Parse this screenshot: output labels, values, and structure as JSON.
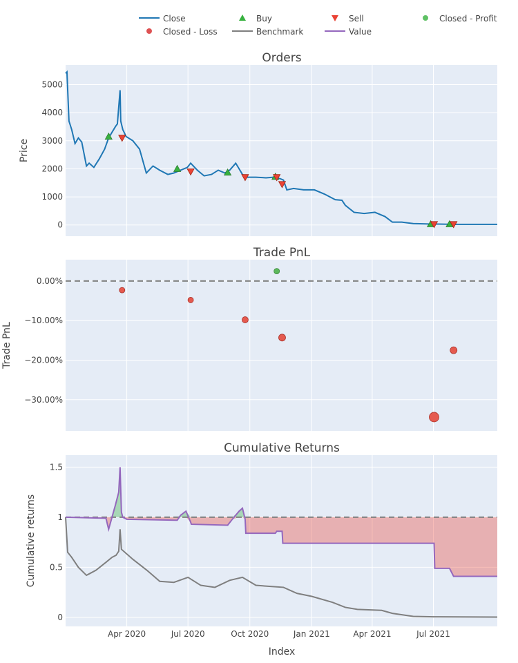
{
  "legend": {
    "items": [
      {
        "key": "close",
        "label": "Close",
        "symbol": "line",
        "color": "#1f77b4"
      },
      {
        "key": "buy",
        "label": "Buy",
        "symbol": "triangle-up",
        "color": "#37b13f"
      },
      {
        "key": "sell",
        "label": "Sell",
        "symbol": "triangle-down",
        "color": "#ea4335"
      },
      {
        "key": "closed_profit",
        "label": "Closed - Profit",
        "symbol": "circle",
        "color": "#37b13f"
      },
      {
        "key": "closed_loss",
        "label": "Closed - Loss",
        "symbol": "circle",
        "color": "#d62728"
      },
      {
        "key": "benchmark",
        "label": "Benchmark",
        "symbol": "line",
        "color": "#7f7f7f"
      },
      {
        "key": "value",
        "label": "Value",
        "symbol": "line",
        "color": "#9467bd"
      }
    ]
  },
  "x_axis": {
    "label": "Index",
    "range": [
      "2020-01-01",
      "2021-10-04"
    ],
    "ticks": [
      {
        "date": "2020-04-01",
        "label": "Apr 2020"
      },
      {
        "date": "2020-07-01",
        "label": "Jul 2020"
      },
      {
        "date": "2020-10-01",
        "label": "Oct 2020"
      },
      {
        "date": "2021-01-01",
        "label": "Jan 2021"
      },
      {
        "date": "2021-04-01",
        "label": "Apr 2021"
      },
      {
        "date": "2021-07-01",
        "label": "Jul 2021"
      }
    ]
  },
  "colors": {
    "plot_bg": "#e5ecf6",
    "grid": "#ffffff",
    "close": "#1f77b4",
    "benchmark": "#7f7f7f",
    "value": "#9467bd",
    "profit": "#37b13f",
    "loss": "#ea4335",
    "loss_fill": "rgba(234,67,53,0.35)",
    "profit_fill": "rgba(55,177,63,0.35)",
    "ref_line": "#808080"
  },
  "chart_data": [
    {
      "type": "line",
      "title": "Orders",
      "xlabel": "",
      "ylabel": "Price",
      "ylim": [
        -400,
        5700
      ],
      "yticks": [
        0,
        1000,
        2000,
        3000,
        4000,
        5000
      ],
      "series": [
        {
          "name": "Close",
          "x": [
            "2020-01-01",
            "2020-01-03",
            "2020-01-06",
            "2020-01-10",
            "2020-01-15",
            "2020-01-20",
            "2020-01-25",
            "2020-02-01",
            "2020-02-05",
            "2020-02-12",
            "2020-02-20",
            "2020-02-28",
            "2020-03-05",
            "2020-03-10",
            "2020-03-15",
            "2020-03-18",
            "2020-03-22",
            "2020-03-23",
            "2020-03-24",
            "2020-03-26",
            "2020-03-31",
            "2020-04-10",
            "2020-04-20",
            "2020-04-30",
            "2020-05-10",
            "2020-05-20",
            "2020-06-01",
            "2020-06-10",
            "2020-06-20",
            "2020-06-30",
            "2020-07-05",
            "2020-07-15",
            "2020-07-25",
            "2020-08-05",
            "2020-08-15",
            "2020-08-25",
            "2020-09-01",
            "2020-09-10",
            "2020-09-20",
            "2020-09-25",
            "2020-10-10",
            "2020-10-25",
            "2020-11-05",
            "2020-11-15",
            "2020-11-20",
            "2020-11-25",
            "2020-12-05",
            "2020-12-20",
            "2021-01-05",
            "2021-01-20",
            "2021-02-05",
            "2021-02-15",
            "2021-02-20",
            "2021-03-05",
            "2021-03-20",
            "2021-04-05",
            "2021-04-20",
            "2021-05-01",
            "2021-05-15",
            "2021-06-01",
            "2021-06-30",
            "2021-07-10",
            "2021-08-01",
            "2021-09-01",
            "2021-10-04"
          ],
          "y": [
            5400,
            5450,
            3700,
            3400,
            2900,
            3100,
            2950,
            2100,
            2200,
            2050,
            2350,
            2700,
            3100,
            3300,
            3500,
            3600,
            4800,
            3700,
            3600,
            3400,
            3150,
            3000,
            2700,
            1850,
            2100,
            1950,
            1800,
            1850,
            1950,
            2050,
            2200,
            1950,
            1750,
            1800,
            1950,
            1850,
            1950,
            2200,
            1800,
            1700,
            1700,
            1680,
            1700,
            1650,
            1600,
            1250,
            1300,
            1250,
            1250,
            1100,
            900,
            880,
            700,
            450,
            410,
            450,
            300,
            100,
            100,
            50,
            30,
            30,
            20,
            20,
            20
          ]
        }
      ],
      "markers": {
        "buy": {
          "name": "Buy",
          "x": [
            "2020-03-05",
            "2020-06-15",
            "2020-08-29",
            "2020-11-08",
            "2021-06-27",
            "2021-07-25"
          ],
          "y": [
            3150,
            2000,
            1870,
            1720,
            30,
            30
          ]
        },
        "sell": {
          "name": "Sell",
          "x": [
            "2020-03-25",
            "2020-07-05",
            "2020-09-24",
            "2020-11-10",
            "2020-11-18",
            "2021-07-02",
            "2021-07-31"
          ],
          "y": [
            3100,
            1900,
            1700,
            1700,
            1450,
            25,
            25
          ]
        }
      }
    },
    {
      "type": "scatter",
      "title": "Trade PnL",
      "xlabel": "",
      "ylabel": "Trade PnL",
      "ylim": [
        -0.379,
        0.054
      ],
      "yticks": [
        0,
        -0.1,
        -0.2,
        -0.3
      ],
      "ytick_labels": [
        "0.00%",
        "−10.00%",
        "−20.00%",
        "−30.00%"
      ],
      "reference_line": 0,
      "series": [
        {
          "name": "Closed - Profit",
          "x": [
            "2020-11-10"
          ],
          "y": [
            0.025
          ],
          "size": [
            4
          ]
        },
        {
          "name": "Closed - Loss",
          "x": [
            "2020-03-25",
            "2020-07-05",
            "2020-09-24",
            "2020-11-18",
            "2021-07-02",
            "2021-07-31"
          ],
          "y": [
            -0.023,
            -0.048,
            -0.098,
            -0.143,
            -0.344,
            -0.175
          ],
          "size": [
            4,
            4,
            4.5,
            5,
            7,
            5
          ]
        }
      ]
    },
    {
      "type": "line",
      "title": "Cumulative Returns",
      "xlabel": "Index",
      "ylabel": "Cumulative returns",
      "ylim": [
        -0.09,
        1.62
      ],
      "yticks": [
        0,
        0.5,
        1,
        1.5
      ],
      "ytick_labels": [
        "0",
        "0.5",
        "1",
        "1.5"
      ],
      "reference_line": 1,
      "series": [
        {
          "name": "Benchmark",
          "x": [
            "2020-01-01",
            "2020-01-04",
            "2020-01-10",
            "2020-01-20",
            "2020-02-01",
            "2020-02-15",
            "2020-03-01",
            "2020-03-10",
            "2020-03-16",
            "2020-03-20",
            "2020-03-22",
            "2020-03-24",
            "2020-04-10",
            "2020-05-01",
            "2020-05-20",
            "2020-06-10",
            "2020-07-01",
            "2020-07-20",
            "2020-08-10",
            "2020-09-01",
            "2020-09-20",
            "2020-10-10",
            "2020-10-30",
            "2020-11-20",
            "2020-12-10",
            "2021-01-01",
            "2021-02-01",
            "2021-02-20",
            "2021-03-10",
            "2021-04-15",
            "2021-05-01",
            "2021-06-01",
            "2021-07-01",
            "2021-10-04"
          ],
          "y": [
            1.0,
            0.65,
            0.6,
            0.5,
            0.42,
            0.47,
            0.55,
            0.6,
            0.62,
            0.66,
            0.88,
            0.68,
            0.58,
            0.47,
            0.36,
            0.35,
            0.4,
            0.32,
            0.3,
            0.37,
            0.4,
            0.32,
            0.31,
            0.3,
            0.24,
            0.21,
            0.15,
            0.1,
            0.08,
            0.07,
            0.04,
            0.01,
            0.006,
            0.003
          ]
        },
        {
          "name": "Value",
          "x": [
            "2020-01-01",
            "2020-03-01",
            "2020-03-05",
            "2020-03-10",
            "2020-03-15",
            "2020-03-20",
            "2020-03-22",
            "2020-03-24",
            "2020-03-26",
            "2020-04-01",
            "2020-06-15",
            "2020-06-20",
            "2020-06-28",
            "2020-07-05",
            "2020-07-06",
            "2020-08-29",
            "2020-09-05",
            "2020-09-15",
            "2020-09-20",
            "2020-09-24",
            "2020-09-25",
            "2020-11-08",
            "2020-11-10",
            "2020-11-18",
            "2020-11-19",
            "2021-06-27",
            "2021-07-02",
            "2021-07-03",
            "2021-07-25",
            "2021-07-31",
            "2021-08-01",
            "2021-10-04"
          ],
          "y": [
            1.0,
            0.99,
            0.88,
            1.0,
            1.12,
            1.25,
            1.5,
            1.05,
            1.0,
            0.98,
            0.97,
            1.02,
            1.06,
            0.95,
            0.93,
            0.92,
            0.98,
            1.06,
            1.09,
            0.98,
            0.84,
            0.84,
            0.86,
            0.86,
            0.74,
            0.74,
            0.74,
            0.49,
            0.49,
            0.41,
            0.41,
            0.41
          ]
        }
      ],
      "drawdown_fill": {
        "from": "Value",
        "to": 1.0
      }
    }
  ]
}
